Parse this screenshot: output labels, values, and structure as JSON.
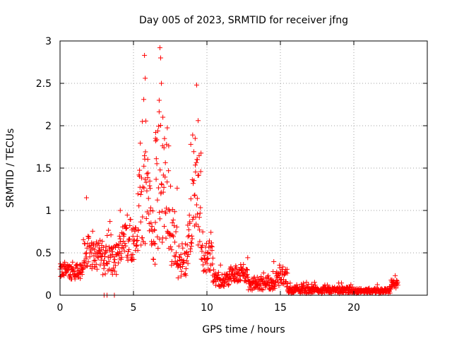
{
  "chart_data": {
    "type": "scatter",
    "title": "Day 005 of 2023, SRMTID for receiver jfng",
    "xlabel": "GPS time / hours",
    "ylabel": "SRMTID / TECUs",
    "xlim": [
      0,
      25
    ],
    "ylim": [
      0,
      3
    ],
    "x_ticks": [
      0,
      5,
      10,
      15,
      20
    ],
    "y_ticks": [
      0,
      0.5,
      1,
      1.5,
      2,
      2.5,
      3
    ],
    "x_tick_labels": [
      "0",
      "5",
      "10",
      "15",
      "20"
    ],
    "y_tick_labels": [
      "0",
      "0.5",
      "1",
      "1.5",
      "2",
      "2.5",
      "3"
    ],
    "grid": true,
    "marker": "+",
    "marker_color": "#ff0000",
    "series": [
      {
        "name": "SRMTID",
        "segments": [
          {
            "from": 0.0,
            "to": 1.6,
            "base": 0.28,
            "noise": 0.09
          },
          {
            "from": 1.6,
            "to": 2.8,
            "base": 0.5,
            "noise": 0.2
          },
          {
            "from": 2.8,
            "to": 4.0,
            "base": 0.42,
            "noise": 0.18
          },
          {
            "from": 4.0,
            "to": 5.3,
            "base": 0.62,
            "noise": 0.22
          },
          {
            "from": 5.3,
            "to": 6.2,
            "base": 1.1,
            "noise": 0.55
          },
          {
            "from": 6.2,
            "to": 6.5,
            "base": 0.6,
            "noise": 0.3
          },
          {
            "from": 6.5,
            "to": 7.4,
            "base": 1.3,
            "noise": 0.75
          },
          {
            "from": 7.4,
            "to": 8.0,
            "base": 0.7,
            "noise": 0.35
          },
          {
            "from": 8.0,
            "to": 8.7,
            "base": 0.35,
            "noise": 0.15
          },
          {
            "from": 8.7,
            "to": 9.0,
            "base": 0.7,
            "noise": 0.3
          },
          {
            "from": 9.0,
            "to": 9.6,
            "base": 1.1,
            "noise": 0.6
          },
          {
            "from": 9.6,
            "to": 10.4,
            "base": 0.45,
            "noise": 0.18
          },
          {
            "from": 10.4,
            "to": 11.5,
            "base": 0.18,
            "noise": 0.08
          },
          {
            "from": 11.5,
            "to": 12.8,
            "base": 0.25,
            "noise": 0.1
          },
          {
            "from": 12.8,
            "to": 14.5,
            "base": 0.13,
            "noise": 0.07
          },
          {
            "from": 14.5,
            "to": 15.5,
            "base": 0.18,
            "noise": 0.1
          },
          {
            "from": 15.5,
            "to": 20.0,
            "base": 0.06,
            "noise": 0.04
          },
          {
            "from": 20.0,
            "to": 22.5,
            "base": 0.05,
            "noise": 0.03
          },
          {
            "from": 22.5,
            "to": 23.0,
            "base": 0.13,
            "noise": 0.05
          }
        ],
        "peaks": [
          {
            "x": 5.75,
            "y": 2.83
          },
          {
            "x": 5.8,
            "y": 2.56
          },
          {
            "x": 5.7,
            "y": 2.31
          },
          {
            "x": 5.6,
            "y": 2.05
          },
          {
            "x": 6.8,
            "y": 2.92
          },
          {
            "x": 6.85,
            "y": 2.8
          },
          {
            "x": 6.9,
            "y": 2.5
          },
          {
            "x": 6.75,
            "y": 2.3
          },
          {
            "x": 7.0,
            "y": 2.1
          },
          {
            "x": 6.5,
            "y": 1.85
          },
          {
            "x": 9.3,
            "y": 2.48
          },
          {
            "x": 9.4,
            "y": 2.06
          },
          {
            "x": 9.2,
            "y": 1.85
          },
          {
            "x": 8.9,
            "y": 1.78
          },
          {
            "x": 9.35,
            "y": 1.6
          },
          {
            "x": 1.8,
            "y": 1.15
          },
          {
            "x": 4.1,
            "y": 1.0
          },
          {
            "x": 3.4,
            "y": 0.87
          },
          {
            "x": 3.0,
            "y": 0.0
          },
          {
            "x": 3.2,
            "y": 0.0
          },
          {
            "x": 3.7,
            "y": 0.0
          }
        ]
      }
    ]
  }
}
